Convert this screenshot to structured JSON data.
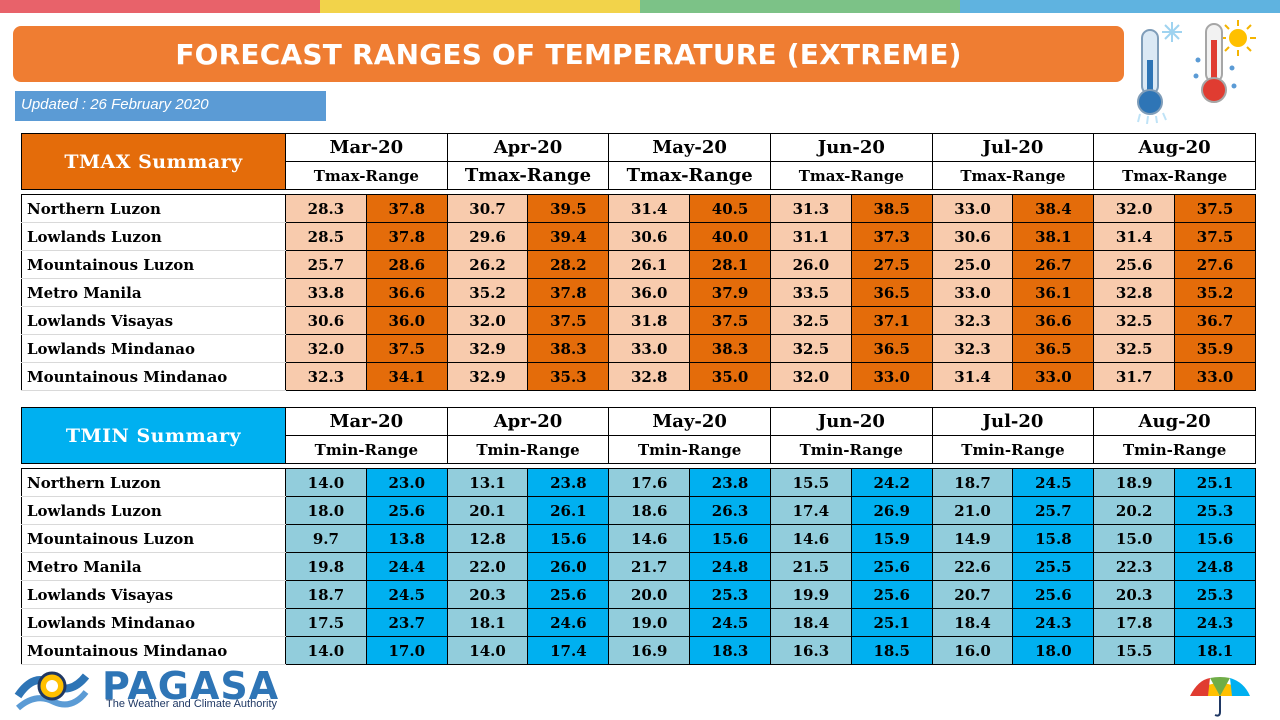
{
  "header": {
    "title": "FORECAST RANGES OF TEMPERATURE (EXTREME)",
    "updated": "Updated : 26 February 2020",
    "stripe_colors": [
      "#e8626a",
      "#f2d34a",
      "#7cc287",
      "#5fb3e0"
    ]
  },
  "months": [
    "Mar-20",
    "Apr-20",
    "May-20",
    "Jun-20",
    "Jul-20",
    "Aug-20"
  ],
  "tmax": {
    "label": "TMAX Summary",
    "sub_label": "Tmax-Range",
    "color_header": "#e46c0a",
    "color_min": "#f8cbad",
    "color_max": "#e46c0a",
    "rows": [
      {
        "region": "Northern Luzon",
        "values": [
          "28.3",
          "37.8",
          "30.7",
          "39.5",
          "31.4",
          "40.5",
          "31.3",
          "38.5",
          "33.0",
          "38.4",
          "32.0",
          "37.5"
        ]
      },
      {
        "region": "Lowlands Luzon",
        "values": [
          "28.5",
          "37.8",
          "29.6",
          "39.4",
          "30.6",
          "40.0",
          "31.1",
          "37.3",
          "30.6",
          "38.1",
          "31.4",
          "37.5"
        ]
      },
      {
        "region": "Mountainous Luzon",
        "values": [
          "25.7",
          "28.6",
          "26.2",
          "28.2",
          "26.1",
          "28.1",
          "26.0",
          "27.5",
          "25.0",
          "26.7",
          "25.6",
          "27.6"
        ]
      },
      {
        "region": "Metro Manila",
        "values": [
          "33.8",
          "36.6",
          "35.2",
          "37.8",
          "36.0",
          "37.9",
          "33.5",
          "36.5",
          "33.0",
          "36.1",
          "32.8",
          "35.2"
        ]
      },
      {
        "region": "Lowlands Visayas",
        "values": [
          "30.6",
          "36.0",
          "32.0",
          "37.5",
          "31.8",
          "37.5",
          "32.5",
          "37.1",
          "32.3",
          "36.6",
          "32.5",
          "36.7"
        ]
      },
      {
        "region": "Lowlands Mindanao",
        "values": [
          "32.0",
          "37.5",
          "32.9",
          "38.3",
          "33.0",
          "38.3",
          "32.5",
          "36.5",
          "32.3",
          "36.5",
          "32.5",
          "35.9"
        ]
      },
      {
        "region": "Mountainous Mindanao",
        "values": [
          "32.3",
          "34.1",
          "32.9",
          "35.3",
          "32.8",
          "35.0",
          "32.0",
          "33.0",
          "31.4",
          "33.0",
          "31.7",
          "33.0"
        ]
      }
    ]
  },
  "tmin": {
    "label": "TMIN Summary",
    "sub_label": "Tmin-Range",
    "color_header": "#00b0f0",
    "color_min": "#92cddc",
    "color_max": "#00b0f0",
    "rows": [
      {
        "region": "Northern Luzon",
        "values": [
          "14.0",
          "23.0",
          "13.1",
          "23.8",
          "17.6",
          "23.8",
          "15.5",
          "24.2",
          "18.7",
          "24.5",
          "18.9",
          "25.1"
        ]
      },
      {
        "region": "Lowlands Luzon",
        "values": [
          "18.0",
          "25.6",
          "20.1",
          "26.1",
          "18.6",
          "26.3",
          "17.4",
          "26.9",
          "21.0",
          "25.7",
          "20.2",
          "25.3"
        ]
      },
      {
        "region": "Mountainous Luzon",
        "values": [
          "9.7",
          "13.8",
          "12.8",
          "15.6",
          "14.6",
          "15.6",
          "14.6",
          "15.9",
          "14.9",
          "15.8",
          "15.0",
          "15.6"
        ]
      },
      {
        "region": "Metro Manila",
        "values": [
          "19.8",
          "24.4",
          "22.0",
          "26.0",
          "21.7",
          "24.8",
          "21.5",
          "25.6",
          "22.6",
          "25.5",
          "22.3",
          "24.8"
        ]
      },
      {
        "region": "Lowlands Visayas",
        "values": [
          "18.7",
          "24.5",
          "20.3",
          "25.6",
          "20.0",
          "25.3",
          "19.9",
          "25.6",
          "20.7",
          "25.6",
          "20.3",
          "25.3"
        ]
      },
      {
        "region": "Lowlands Mindanao",
        "values": [
          "17.5",
          "23.7",
          "18.1",
          "24.6",
          "19.0",
          "24.5",
          "18.4",
          "25.1",
          "18.4",
          "24.3",
          "17.8",
          "24.3"
        ]
      },
      {
        "region": "Mountainous Mindanao",
        "values": [
          "14.0",
          "17.0",
          "14.0",
          "17.4",
          "16.9",
          "18.3",
          "16.3",
          "18.5",
          "16.0",
          "18.0",
          "15.5",
          "18.1"
        ]
      }
    ]
  },
  "footer": {
    "brand": "PAGASA",
    "tagline": "The Weather and Climate Authority"
  },
  "icons": [
    "cold-thermometer-icon",
    "hot-thermometer-icon",
    "pagasa-logo-icon",
    "umbrella-icon"
  ]
}
